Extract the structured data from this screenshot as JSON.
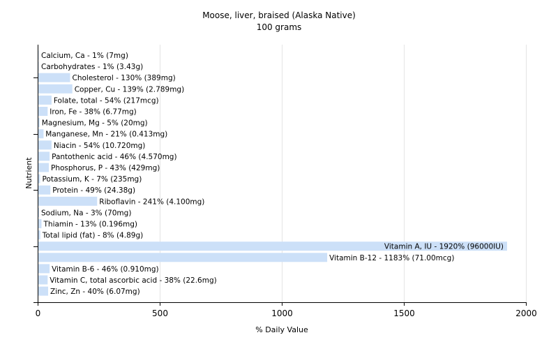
{
  "chart_data": {
    "type": "bar",
    "orientation": "horizontal",
    "title": "Moose, liver, braised (Alaska Native)",
    "subtitle": "100 grams",
    "xlabel": "% Daily Value",
    "ylabel": "Nutrient",
    "xlim": [
      0,
      2000
    ],
    "xticks": [
      0,
      500,
      1000,
      1500,
      2000
    ],
    "grid": true,
    "bar_color": "#cce0f8",
    "categories": [
      "Calcium, Ca",
      "Carbohydrates",
      "Cholesterol",
      "Copper, Cu",
      "Folate, total",
      "Iron, Fe",
      "Magnesium, Mg",
      "Manganese, Mn",
      "Niacin",
      "Pantothenic acid",
      "Phosphorus, P",
      "Potassium, K",
      "Protein",
      "Riboflavin",
      "Sodium, Na",
      "Thiamin",
      "Total lipid (fat)",
      "Vitamin A, IU",
      "Vitamin B-12",
      "Vitamin B-6",
      "Vitamin C, total ascorbic acid",
      "Zinc, Zn"
    ],
    "values": [
      1,
      1,
      130,
      139,
      54,
      38,
      5,
      21,
      54,
      46,
      43,
      7,
      49,
      241,
      3,
      13,
      8,
      1920,
      1183,
      46,
      38,
      40
    ],
    "labels": [
      "Calcium, Ca - 1% (7mg)",
      "Carbohydrates - 1% (3.43g)",
      "Cholesterol - 130% (389mg)",
      "Copper, Cu - 139% (2.789mg)",
      "Folate, total - 54% (217mcg)",
      "Iron, Fe - 38% (6.77mg)",
      "Magnesium, Mg - 5% (20mg)",
      "Manganese, Mn - 21% (0.413mg)",
      "Niacin - 54% (10.720mg)",
      "Pantothenic acid - 46% (4.570mg)",
      "Phosphorus, P - 43% (429mg)",
      "Potassium, K - 7% (235mg)",
      "Protein - 49% (24.38g)",
      "Riboflavin - 241% (4.100mg)",
      "Sodium, Na - 3% (70mg)",
      "Thiamin - 13% (0.196mg)",
      "Total lipid (fat) - 8% (4.89g)",
      "Vitamin A, IU - 1920% (96000IU)",
      "Vitamin B-12 - 1183% (71.00mcg)",
      "Vitamin B-6 - 46% (0.910mg)",
      "Vitamin C, total ascorbic acid - 38% (22.6mg)",
      "Zinc, Zn - 40% (6.07mg)"
    ]
  }
}
